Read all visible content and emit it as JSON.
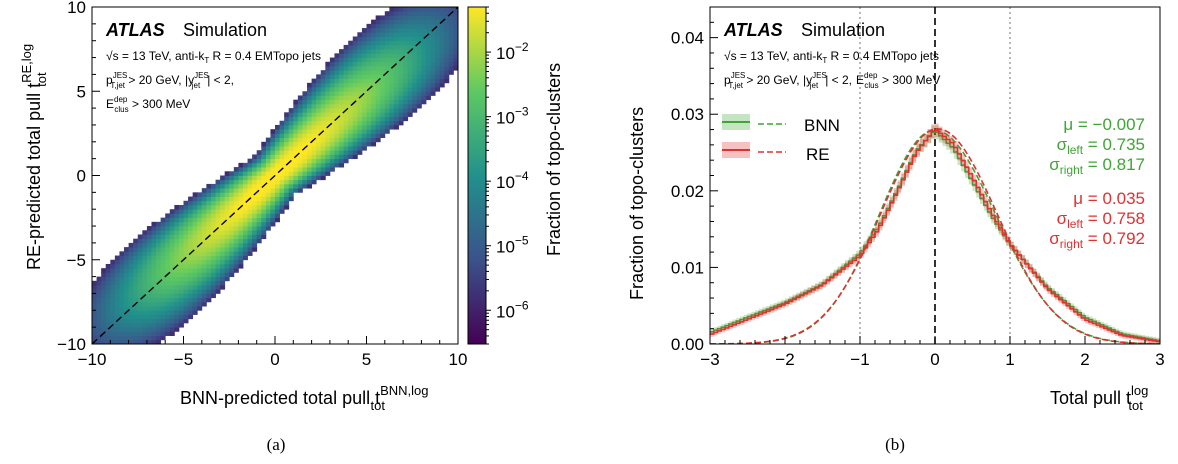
{
  "chart_data": [
    {
      "type": "heatmap",
      "panel_caption": "(a)",
      "xlabel": "BNN-predicted total pull t_tot^BNN,log",
      "ylabel": "RE-predicted total pull t_tot^RE,log",
      "xlim": [
        -10,
        10
      ],
      "ylim": [
        -10,
        10
      ],
      "x_ticks": [
        "−10",
        "−5",
        "0",
        "5",
        "10"
      ],
      "y_ticks": [
        "−10",
        "−5",
        "0",
        "5",
        "10"
      ],
      "colorbar": {
        "label": "Fraction of topo-clusters",
        "scale": "log",
        "range": [
          3e-07,
          0.05
        ],
        "ticks": [
          "10",
          "10",
          "10",
          "10",
          "10"
        ],
        "tick_exponents": [
          "−2",
          "−3",
          "−4",
          "−5",
          "−6"
        ],
        "colormap": [
          "#440154",
          "#3b528b",
          "#21918c",
          "#5ec962",
          "#fde725"
        ]
      },
      "diagonal": "dashed black line y = x",
      "annotations": {
        "experiment": "ATLAS",
        "status": "Simulation",
        "line1": "√s = 13 TeV, anti-k_T R = 0.4 EMTopo jets",
        "line2": "p_T,jet^JES > 20 GeV, |y_jet^JES| < 2,",
        "line3": "E_clus^dep > 300 MeV"
      }
    },
    {
      "type": "line",
      "panel_caption": "(b)",
      "xlabel": "Total pull t_tot^log",
      "ylabel": "Fraction of topo-clusters",
      "xlim": [
        -3,
        3
      ],
      "ylim": [
        0,
        0.044
      ],
      "x_ticks": [
        "−3",
        "−2",
        "−1",
        "0",
        "1",
        "2",
        "3"
      ],
      "y_ticks": [
        "0.00",
        "0.01",
        "0.02",
        "0.03",
        "0.04"
      ],
      "x_values": [
        -3,
        -2.5,
        -2,
        -1.5,
        -1,
        -0.75,
        -0.5,
        -0.25,
        0,
        0.25,
        0.5,
        0.75,
        1,
        1.5,
        2,
        2.5,
        3
      ],
      "series": [
        {
          "name": "BNN",
          "color": "#3fa535",
          "style": "histogram + dashed gaussian fit",
          "values": [
            0.0015,
            0.0035,
            0.0054,
            0.0078,
            0.0118,
            0.0153,
            0.0201,
            0.0252,
            0.0279,
            0.0255,
            0.0212,
            0.0168,
            0.013,
            0.0074,
            0.0035,
            0.0013,
            0.0004
          ],
          "fit": {
            "mu": -0.007,
            "sigma_left": 0.735,
            "sigma_right": 0.817
          }
        },
        {
          "name": "RE",
          "color": "#e03131",
          "style": "histogram + dashed gaussian fit",
          "values": [
            0.0012,
            0.0032,
            0.0052,
            0.0077,
            0.0115,
            0.015,
            0.0199,
            0.025,
            0.0281,
            0.0261,
            0.0218,
            0.0172,
            0.0131,
            0.0072,
            0.0032,
            0.0011,
            0.0003
          ],
          "fit": {
            "mu": 0.035,
            "sigma_left": 0.758,
            "sigma_right": 0.792
          }
        }
      ],
      "reference_lines": [
        {
          "x": 0,
          "style": "dashed black"
        },
        {
          "x": -1,
          "style": "dotted grey"
        },
        {
          "x": 1,
          "style": "dotted grey"
        }
      ],
      "legend": "upper-left",
      "annotations": {
        "experiment": "ATLAS",
        "status": "Simulation",
        "line1": "√s = 13 TeV, anti-k_T R = 0.4 EMTopo jets",
        "line2": "p_T,jet^JES > 20 GeV, |y_jet^JES| < 2, E_clus^dep > 300 MeV",
        "bnn_stats": [
          "μ = −0.007",
          "σ_left = 0.735",
          "σ_right = 0.817"
        ],
        "re_stats": [
          "μ = 0.035",
          "σ_left = 0.758",
          "σ_right = 0.792"
        ]
      }
    }
  ],
  "labels": {
    "atlas": "ATLAS",
    "simulation": "Simulation",
    "sqrt": "√s = 13 TeV, anti-k",
    "sub_T": "T",
    "r_text": " R = 0.4 EMTopo jets",
    "p": "p",
    "jes": "JES",
    "tjet": "T,jet",
    "gt20": " > 20 GeV, |y",
    "jet": "jet",
    "lt2": "| < 2,",
    "e": "E",
    "dep": "dep",
    "clus": "clus",
    "gt300": " > 300 MeV",
    "a_xlabel": "BNN-predicted total pull t",
    "a_xsup": "BNN,log",
    "a_xsub": "tot",
    "a_ylabel": "RE-predicted total pull t",
    "a_ysup": "RE,log",
    "a_ysub": "tot",
    "cbar_label": "Fraction of topo-clusters",
    "b_ylabel": "Fraction of topo-clusters",
    "b_xlabel": "Total pull t",
    "b_xsup": "log",
    "b_xsub": "tot",
    "leg_bnn": "BNN",
    "leg_re": "RE",
    "mu": "μ",
    "sigma": "σ",
    "left": "left",
    "right": "right",
    "bnn_mu": " = −0.007",
    "bnn_sl": " = 0.735",
    "bnn_sr": " = 0.817",
    "re_mu": " = 0.035",
    "re_sl": " = 0.758",
    "re_sr": " = 0.792",
    "cap_a": "(a)",
    "cap_b": "(b)"
  }
}
